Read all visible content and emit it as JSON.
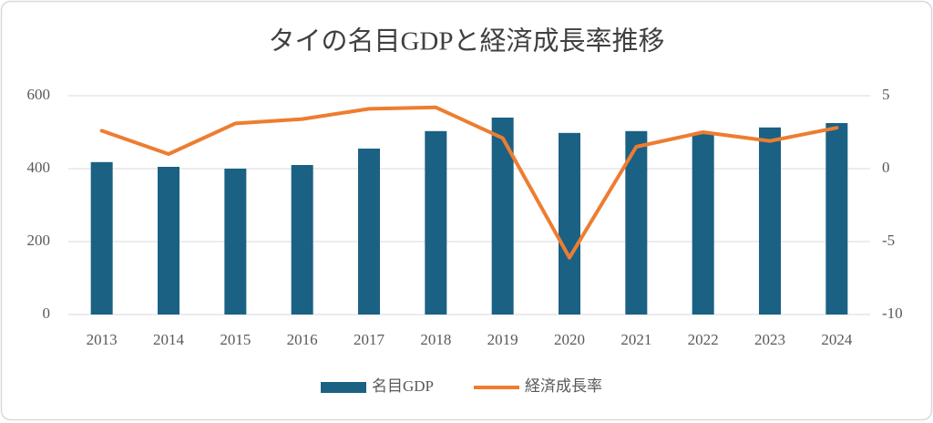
{
  "chart_data": {
    "type": "combo",
    "title": "タイの名目GDPと経済成長率推移",
    "categories": [
      "2013",
      "2014",
      "2015",
      "2016",
      "2017",
      "2018",
      "2019",
      "2020",
      "2021",
      "2022",
      "2023",
      "2024"
    ],
    "series": [
      {
        "name": "名目GDP",
        "type": "bar",
        "color": "#1a6184",
        "values": [
          418,
          405,
          400,
          410,
          455,
          503,
          540,
          498,
          503,
          495,
          513,
          525
        ]
      },
      {
        "name": "経済成長率",
        "type": "line",
        "axis": "y2",
        "color": "#ed7d31",
        "values": [
          2.6,
          1.0,
          3.1,
          3.4,
          4.1,
          4.2,
          2.1,
          -6.1,
          1.5,
          2.5,
          1.9,
          2.8
        ]
      }
    ],
    "ylim": [
      0,
      600
    ],
    "yticks": [
      0,
      200,
      400,
      600
    ],
    "y2lim": [
      -10,
      5
    ],
    "y2ticks": [
      -10,
      -5,
      0,
      5
    ],
    "grid": true,
    "legend": "bottom"
  }
}
